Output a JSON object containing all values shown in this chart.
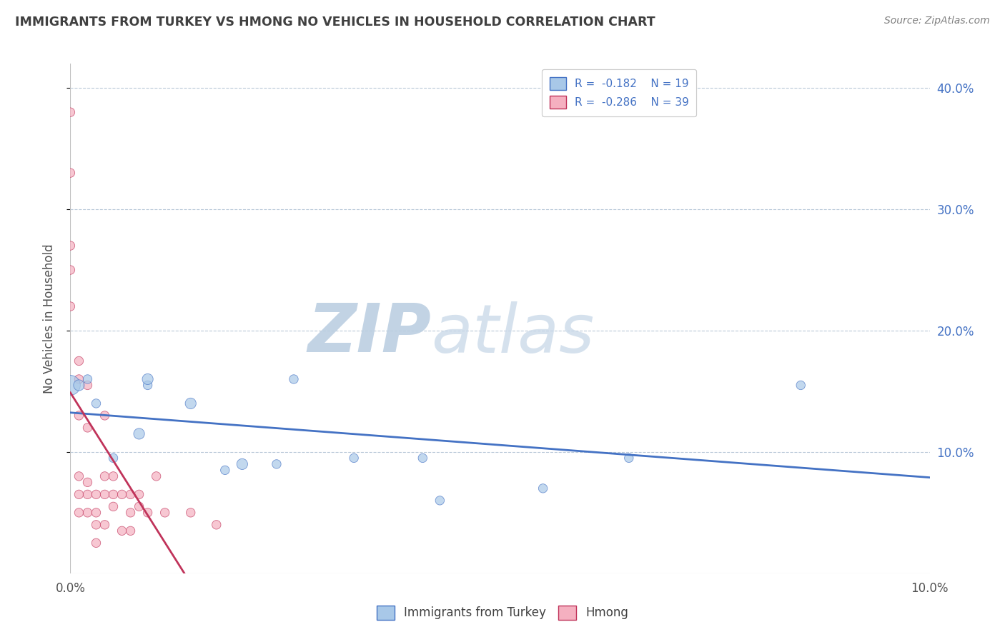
{
  "title": "IMMIGRANTS FROM TURKEY VS HMONG NO VEHICLES IN HOUSEHOLD CORRELATION CHART",
  "source": "Source: ZipAtlas.com",
  "ylabel": "No Vehicles in Household",
  "xlim": [
    0.0,
    0.1
  ],
  "ylim": [
    0.0,
    0.42
  ],
  "yticks": [
    0.1,
    0.2,
    0.3,
    0.4
  ],
  "ytick_labels": [
    "10.0%",
    "20.0%",
    "30.0%",
    "40.0%"
  ],
  "legend_r1": "R =  -0.182",
  "legend_n1": "N = 19",
  "legend_r2": "R =  -0.286",
  "legend_n2": "N = 39",
  "color_turkey": "#a8c8e8",
  "color_hmong": "#f5b0c0",
  "color_turkey_line": "#4472c4",
  "color_hmong_line": "#c0335a",
  "color_title": "#404040",
  "color_source": "#808080",
  "color_watermark": "#cdd8e8",
  "turkey_x": [
    0.0,
    0.001,
    0.002,
    0.003,
    0.005,
    0.008,
    0.009,
    0.009,
    0.014,
    0.018,
    0.02,
    0.024,
    0.026,
    0.033,
    0.041,
    0.043,
    0.055,
    0.065,
    0.085
  ],
  "turkey_y": [
    0.155,
    0.155,
    0.16,
    0.14,
    0.095,
    0.115,
    0.155,
    0.16,
    0.14,
    0.085,
    0.09,
    0.09,
    0.16,
    0.095,
    0.095,
    0.06,
    0.07,
    0.095,
    0.155
  ],
  "turkey_size": [
    400,
    120,
    80,
    80,
    80,
    120,
    80,
    120,
    120,
    80,
    120,
    80,
    80,
    80,
    80,
    80,
    80,
    80,
    80
  ],
  "hmong_x": [
    0.0,
    0.0,
    0.0,
    0.0,
    0.0,
    0.001,
    0.001,
    0.001,
    0.001,
    0.001,
    0.001,
    0.002,
    0.002,
    0.002,
    0.002,
    0.002,
    0.003,
    0.003,
    0.003,
    0.003,
    0.004,
    0.004,
    0.004,
    0.004,
    0.005,
    0.005,
    0.005,
    0.006,
    0.006,
    0.007,
    0.007,
    0.007,
    0.008,
    0.008,
    0.009,
    0.01,
    0.011,
    0.014,
    0.017
  ],
  "hmong_y": [
    0.38,
    0.33,
    0.27,
    0.25,
    0.22,
    0.175,
    0.16,
    0.13,
    0.08,
    0.065,
    0.05,
    0.155,
    0.12,
    0.075,
    0.065,
    0.05,
    0.065,
    0.05,
    0.04,
    0.025,
    0.13,
    0.08,
    0.065,
    0.04,
    0.08,
    0.065,
    0.055,
    0.065,
    0.035,
    0.065,
    0.05,
    0.035,
    0.065,
    0.055,
    0.05,
    0.08,
    0.05,
    0.05,
    0.04
  ],
  "hmong_size": [
    80,
    80,
    80,
    80,
    80,
    80,
    80,
    80,
    80,
    80,
    80,
    80,
    80,
    80,
    80,
    80,
    80,
    80,
    80,
    80,
    80,
    80,
    80,
    80,
    80,
    80,
    80,
    80,
    80,
    80,
    80,
    80,
    80,
    80,
    80,
    80,
    80,
    80,
    80
  ]
}
